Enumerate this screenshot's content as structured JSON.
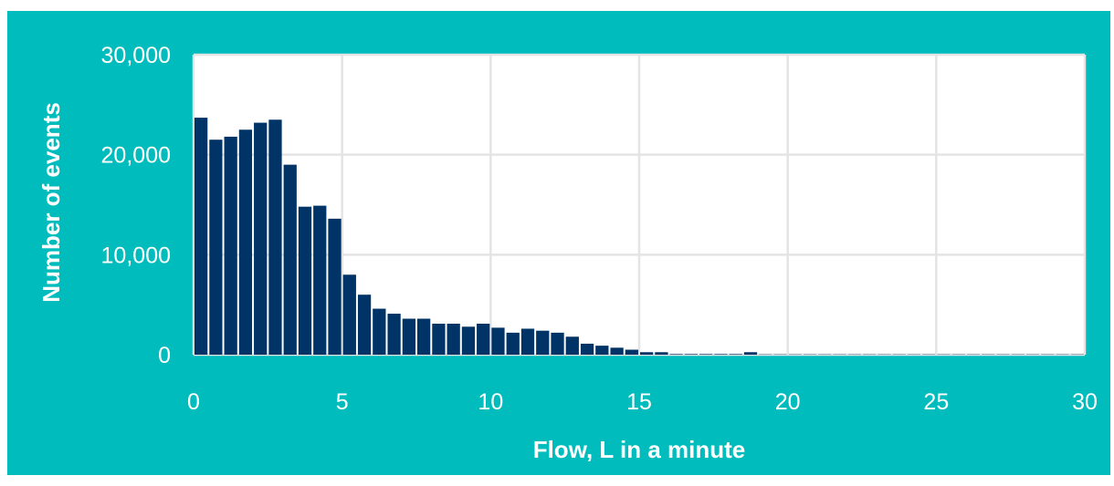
{
  "colors": {
    "background": "#00bcbd",
    "plot_area": "#ffffff",
    "bar": "#003366",
    "grid": "#e4e4e4",
    "text": "#ffffff"
  },
  "chart_data": {
    "type": "bar",
    "title": "",
    "xlabel": "Flow, L in a minute",
    "ylabel": "Number of events",
    "bin_width": 0.5,
    "x": [
      0.25,
      0.75,
      1.25,
      1.75,
      2.25,
      2.75,
      3.25,
      3.75,
      4.25,
      4.75,
      5.25,
      5.75,
      6.25,
      6.75,
      7.25,
      7.75,
      8.25,
      8.75,
      9.25,
      9.75,
      10.25,
      10.75,
      11.25,
      11.75,
      12.25,
      12.75,
      13.25,
      13.75,
      14.25,
      14.75,
      15.25,
      15.75,
      16.25,
      16.75,
      17.25,
      17.75,
      18.25,
      18.75,
      19.25,
      19.75,
      20.25,
      20.75,
      21.25,
      21.75,
      22.25,
      22.75,
      23.25,
      23.75,
      24.25,
      24.75,
      25.25,
      25.75,
      26.25,
      26.75,
      27.25,
      27.75,
      28.25,
      28.75,
      29.25,
      29.75
    ],
    "values": [
      23700,
      21500,
      21800,
      22500,
      23200,
      23500,
      19000,
      14800,
      14900,
      13600,
      8000,
      6000,
      4600,
      4100,
      3600,
      3600,
      3100,
      3100,
      2800,
      3100,
      2700,
      2200,
      2600,
      2400,
      2200,
      1800,
      1100,
      900,
      700,
      500,
      250,
      250,
      60,
      60,
      60,
      60,
      60,
      250,
      30,
      30,
      30,
      30,
      30,
      30,
      30,
      30,
      30,
      30,
      30,
      30,
      30,
      30,
      30,
      30,
      30,
      30,
      30,
      30,
      30,
      30
    ],
    "xlim": [
      0,
      30
    ],
    "ylim": [
      0,
      30000
    ],
    "x_ticks": [
      "0",
      "5",
      "10",
      "15",
      "20",
      "25",
      "30"
    ],
    "y_ticks": [
      "0",
      "10,000",
      "20,000",
      "30,000"
    ],
    "grid": true,
    "legend": "none"
  }
}
